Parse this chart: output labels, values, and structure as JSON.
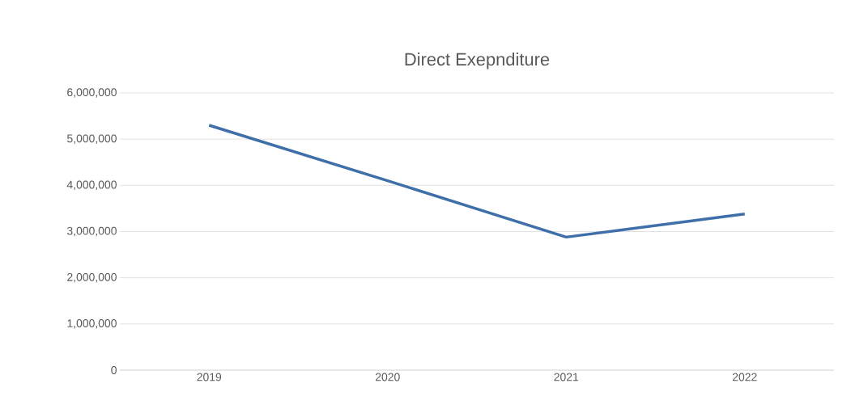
{
  "chart_data": {
    "type": "line",
    "title": "Direct  Exepnditure",
    "categories": [
      "2019",
      "2020",
      "2021",
      "2022"
    ],
    "series": [
      {
        "color": "#3f6fa8",
        "values": [
          5300000,
          4100000,
          2880000,
          3380000
        ]
      }
    ],
    "ylim": [
      0,
      6000000
    ],
    "yticks": [
      {
        "value": 0,
        "label": "0"
      },
      {
        "value": 1000000,
        "label": "1,000,000"
      },
      {
        "value": 2000000,
        "label": "2,000,000"
      },
      {
        "value": 3000000,
        "label": "3,000,000"
      },
      {
        "value": 4000000,
        "label": "4,000,000"
      },
      {
        "value": 5000000,
        "label": "5,000,000"
      },
      {
        "value": 6000000,
        "label": "6,000,000"
      }
    ],
    "grid": "y",
    "legend": false,
    "marker": "none",
    "line_style": "solid"
  }
}
